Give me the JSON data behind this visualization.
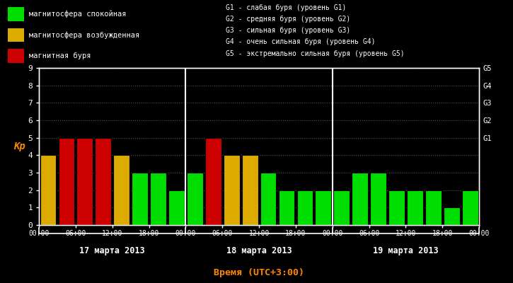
{
  "background_color": "#000000",
  "plot_bg_color": "#000000",
  "xlabel": "Время (UTC+3:00)",
  "ylabel": "Кр",
  "ylim": [
    0,
    9
  ],
  "green": "#00dd00",
  "yellow": "#ddaa00",
  "red": "#cc0000",
  "white": "#ffffff",
  "orange": "#ff8800",
  "day1_label": "17 марта 2013",
  "day2_label": "18 марта 2013",
  "day3_label": "19 марта 2013",
  "legend_items": [
    {
      "label": "магнитосфера спокойная",
      "color": "#00dd00"
    },
    {
      "label": "магнитосфера возбужденная",
      "color": "#ddaa00"
    },
    {
      "label": "магнитная буря",
      "color": "#cc0000"
    }
  ],
  "g_labels": [
    "G1 - слабая буря (уровень G1)",
    "G2 - средняя буря (уровень G2)",
    "G3 - сильная буря (уровень G3)",
    "G4 - очень сильная буря (уровень G4)",
    "G5 - экстремально сильная буря (уровень G5)"
  ],
  "g_tick_labels": [
    "G1",
    "G2",
    "G3",
    "G4",
    "G5"
  ],
  "bars": [
    {
      "kp": 4,
      "color": "#ddaa00"
    },
    {
      "kp": 5,
      "color": "#cc0000"
    },
    {
      "kp": 5,
      "color": "#cc0000"
    },
    {
      "kp": 5,
      "color": "#cc0000"
    },
    {
      "kp": 4,
      "color": "#ddaa00"
    },
    {
      "kp": 3,
      "color": "#00dd00"
    },
    {
      "kp": 3,
      "color": "#00dd00"
    },
    {
      "kp": 2,
      "color": "#00dd00"
    },
    {
      "kp": 3,
      "color": "#00dd00"
    },
    {
      "kp": 5,
      "color": "#cc0000"
    },
    {
      "kp": 4,
      "color": "#ddaa00"
    },
    {
      "kp": 4,
      "color": "#ddaa00"
    },
    {
      "kp": 3,
      "color": "#00dd00"
    },
    {
      "kp": 2,
      "color": "#00dd00"
    },
    {
      "kp": 2,
      "color": "#00dd00"
    },
    {
      "kp": 2,
      "color": "#00dd00"
    },
    {
      "kp": 2,
      "color": "#00dd00"
    },
    {
      "kp": 3,
      "color": "#00dd00"
    },
    {
      "kp": 3,
      "color": "#00dd00"
    },
    {
      "kp": 2,
      "color": "#00dd00"
    },
    {
      "kp": 2,
      "color": "#00dd00"
    },
    {
      "kp": 2,
      "color": "#00dd00"
    },
    {
      "kp": 1,
      "color": "#00dd00"
    },
    {
      "kp": 2,
      "color": "#00dd00"
    }
  ],
  "tick_labels": [
    "00:00",
    "06:00",
    "12:00",
    "18:00",
    "00:00",
    "06:00",
    "12:00",
    "18:00",
    "00:00",
    "06:00",
    "12:00",
    "18:00",
    "00:00"
  ]
}
